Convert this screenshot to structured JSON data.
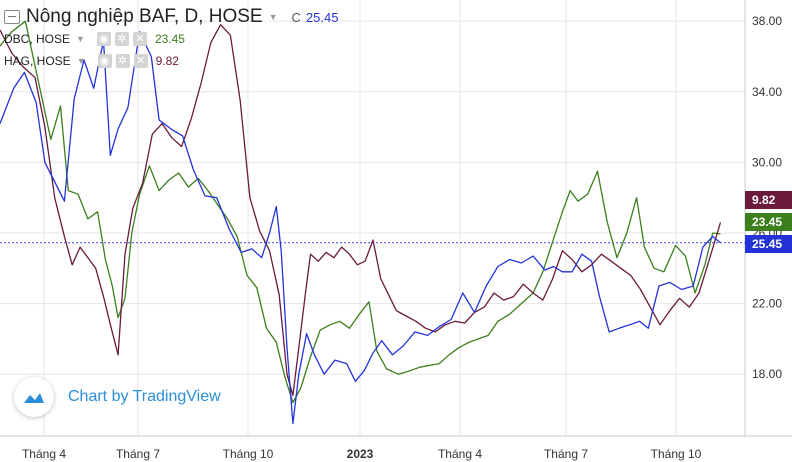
{
  "header": {
    "main_title": "Nông nghiệp BAF, D, HOSE",
    "main_label": "C",
    "main_value": "25.45"
  },
  "legend": [
    {
      "name": "DBC, HOSE",
      "value": "23.45",
      "icons": [
        "eye-icon",
        "gear-icon",
        "close-icon"
      ]
    },
    {
      "name": "HAG, HOSE",
      "value": "9.82",
      "icons": [
        "eye-icon",
        "gear-icon",
        "close-icon"
      ]
    }
  ],
  "watermark": {
    "text": "Chart by TradingView"
  },
  "colors": {
    "BAF": "#2433d8",
    "DBC": "#3c7f1c",
    "HAG": "#6b1a3c",
    "grid": "#e6e6e6"
  },
  "chart_data": {
    "type": "line",
    "x_ticks": [
      "Tháng 4",
      "Tháng 7",
      "Tháng 10",
      "2023",
      "Tháng 4",
      "Tháng 7",
      "Tháng 10"
    ],
    "y_ticks": [
      "38.00",
      "34.00",
      "30.00",
      "26.00",
      "22.00",
      "18.00"
    ],
    "ylim": [
      14.5,
      39.2
    ],
    "xlim": [
      0,
      760
    ],
    "grid": true,
    "price_line": 25.45,
    "last_labels": [
      {
        "series": "HAG",
        "text": "9.82"
      },
      {
        "series": "DBC",
        "text": "23.45"
      },
      {
        "series": "BAF",
        "text": "25.45"
      }
    ],
    "series": [
      {
        "name": "BAF",
        "points": [
          [
            0,
            32.2
          ],
          [
            14,
            34.2
          ],
          [
            25,
            35.1
          ],
          [
            37,
            33.4
          ],
          [
            46,
            30.0
          ],
          [
            56,
            28.9
          ],
          [
            66,
            27.8
          ],
          [
            76,
            33.6
          ],
          [
            86,
            35.8
          ],
          [
            96,
            34.2
          ],
          [
            106,
            36.9
          ],
          [
            113,
            30.4
          ],
          [
            121,
            31.9
          ],
          [
            131,
            33.1
          ],
          [
            143,
            37.4
          ],
          [
            155,
            36.0
          ],
          [
            163,
            32.4
          ],
          [
            175,
            31.9
          ],
          [
            187,
            31.5
          ],
          [
            198,
            29.6
          ],
          [
            210,
            28.1
          ],
          [
            222,
            28.0
          ],
          [
            235,
            26.2
          ],
          [
            247,
            24.9
          ],
          [
            258,
            25.1
          ],
          [
            268,
            24.6
          ],
          [
            276,
            26.0
          ],
          [
            283,
            27.5
          ],
          [
            288,
            25.0
          ],
          [
            294,
            19.5
          ],
          [
            300,
            15.2
          ],
          [
            306,
            18.0
          ],
          [
            314,
            20.3
          ],
          [
            322,
            19.1
          ],
          [
            332,
            18.0
          ],
          [
            343,
            18.8
          ],
          [
            355,
            18.6
          ],
          [
            364,
            17.6
          ],
          [
            373,
            18.2
          ],
          [
            382,
            19.2
          ],
          [
            391,
            19.9
          ],
          [
            402,
            19.1
          ],
          [
            413,
            19.6
          ],
          [
            425,
            20.4
          ],
          [
            438,
            20.2
          ],
          [
            450,
            20.7
          ],
          [
            462,
            21.1
          ],
          [
            474,
            22.6
          ],
          [
            486,
            21.5
          ],
          [
            498,
            23.0
          ],
          [
            510,
            24.1
          ],
          [
            522,
            24.5
          ],
          [
            534,
            24.3
          ],
          [
            546,
            24.7
          ],
          [
            558,
            23.9
          ],
          [
            567,
            24.1
          ],
          [
            576,
            23.8
          ],
          [
            586,
            23.8
          ],
          [
            596,
            24.8
          ],
          [
            606,
            24.4
          ],
          [
            614,
            22.4
          ],
          [
            624,
            20.4
          ],
          [
            634,
            20.6
          ],
          [
            645,
            20.8
          ],
          [
            655,
            21.0
          ],
          [
            664,
            20.6
          ],
          [
            675,
            23.0
          ],
          [
            686,
            23.2
          ],
          [
            698,
            22.8
          ],
          [
            710,
            23.0
          ],
          [
            720,
            25.2
          ],
          [
            730,
            25.8
          ],
          [
            738,
            25.45
          ]
        ]
      },
      {
        "name": "DBC",
        "points": [
          [
            0,
            36.6
          ],
          [
            12,
            37.4
          ],
          [
            26,
            38.0
          ],
          [
            40,
            34.4
          ],
          [
            52,
            31.3
          ],
          [
            62,
            33.2
          ],
          [
            70,
            28.4
          ],
          [
            80,
            28.2
          ],
          [
            90,
            26.8
          ],
          [
            100,
            27.2
          ],
          [
            108,
            24.5
          ],
          [
            115,
            23.0
          ],
          [
            121,
            21.2
          ],
          [
            128,
            22.3
          ],
          [
            135,
            26.0
          ],
          [
            143,
            28.2
          ],
          [
            153,
            29.8
          ],
          [
            163,
            28.4
          ],
          [
            173,
            29.0
          ],
          [
            183,
            29.4
          ],
          [
            193,
            28.6
          ],
          [
            203,
            29.1
          ],
          [
            213,
            28.4
          ],
          [
            223,
            27.6
          ],
          [
            233,
            26.8
          ],
          [
            243,
            25.8
          ],
          [
            253,
            23.6
          ],
          [
            263,
            22.9
          ],
          [
            273,
            20.6
          ],
          [
            283,
            19.8
          ],
          [
            292,
            17.8
          ],
          [
            300,
            16.4
          ],
          [
            308,
            17.2
          ],
          [
            318,
            19.0
          ],
          [
            328,
            20.5
          ],
          [
            338,
            20.8
          ],
          [
            348,
            21.0
          ],
          [
            358,
            20.6
          ],
          [
            368,
            21.4
          ],
          [
            378,
            22.1
          ],
          [
            386,
            19.3
          ],
          [
            396,
            18.3
          ],
          [
            408,
            18.0
          ],
          [
            420,
            18.2
          ],
          [
            430,
            18.4
          ],
          [
            440,
            18.5
          ],
          [
            450,
            18.6
          ],
          [
            460,
            19.1
          ],
          [
            470,
            19.5
          ],
          [
            480,
            19.8
          ],
          [
            490,
            20.0
          ],
          [
            500,
            20.2
          ],
          [
            510,
            21.0
          ],
          [
            522,
            21.4
          ],
          [
            534,
            22.0
          ],
          [
            546,
            22.6
          ],
          [
            556,
            23.8
          ],
          [
            566,
            25.5
          ],
          [
            576,
            27.2
          ],
          [
            584,
            28.4
          ],
          [
            592,
            27.8
          ],
          [
            602,
            28.2
          ],
          [
            612,
            29.5
          ],
          [
            622,
            26.6
          ],
          [
            632,
            24.6
          ],
          [
            642,
            26.0
          ],
          [
            652,
            28.0
          ],
          [
            660,
            25.2
          ],
          [
            670,
            24.0
          ],
          [
            680,
            23.8
          ],
          [
            692,
            25.3
          ],
          [
            702,
            24.7
          ],
          [
            712,
            22.6
          ],
          [
            722,
            24.2
          ],
          [
            730,
            26.0
          ],
          [
            738,
            25.95
          ]
        ]
      },
      {
        "name": "HAG",
        "points": [
          [
            0,
            37.5
          ],
          [
            12,
            36.2
          ],
          [
            24,
            35.4
          ],
          [
            36,
            34.8
          ],
          [
            46,
            32.0
          ],
          [
            56,
            28.0
          ],
          [
            66,
            25.8
          ],
          [
            74,
            24.2
          ],
          [
            82,
            25.2
          ],
          [
            90,
            24.6
          ],
          [
            98,
            24.0
          ],
          [
            106,
            22.4
          ],
          [
            114,
            20.6
          ],
          [
            121,
            19.1
          ],
          [
            128,
            24.8
          ],
          [
            136,
            27.4
          ],
          [
            146,
            28.8
          ],
          [
            156,
            31.6
          ],
          [
            166,
            32.2
          ],
          [
            176,
            31.4
          ],
          [
            186,
            30.9
          ],
          [
            196,
            32.5
          ],
          [
            206,
            34.5
          ],
          [
            216,
            36.8
          ],
          [
            226,
            37.8
          ],
          [
            236,
            37.2
          ],
          [
            246,
            33.5
          ],
          [
            256,
            28.0
          ],
          [
            266,
            26.1
          ],
          [
            276,
            25.0
          ],
          [
            286,
            22.5
          ],
          [
            294,
            18.0
          ],
          [
            300,
            16.8
          ],
          [
            306,
            19.5
          ],
          [
            312,
            22.2
          ],
          [
            318,
            24.8
          ],
          [
            326,
            24.4
          ],
          [
            334,
            24.9
          ],
          [
            342,
            24.6
          ],
          [
            350,
            25.2
          ],
          [
            358,
            24.8
          ],
          [
            366,
            24.2
          ],
          [
            374,
            24.4
          ],
          [
            382,
            25.6
          ],
          [
            390,
            23.4
          ],
          [
            398,
            22.5
          ],
          [
            406,
            21.6
          ],
          [
            416,
            21.3
          ],
          [
            426,
            21.0
          ],
          [
            436,
            20.6
          ],
          [
            446,
            20.4
          ],
          [
            456,
            20.8
          ],
          [
            466,
            21.0
          ],
          [
            476,
            20.9
          ],
          [
            486,
            21.5
          ],
          [
            496,
            21.8
          ],
          [
            506,
            22.6
          ],
          [
            516,
            22.2
          ],
          [
            526,
            22.4
          ],
          [
            536,
            23.1
          ],
          [
            546,
            22.6
          ],
          [
            556,
            22.2
          ],
          [
            566,
            23.4
          ],
          [
            576,
            25.0
          ],
          [
            586,
            24.5
          ],
          [
            596,
            23.8
          ],
          [
            606,
            24.2
          ],
          [
            616,
            24.8
          ],
          [
            626,
            24.4
          ],
          [
            636,
            24.0
          ],
          [
            646,
            23.6
          ],
          [
            656,
            22.8
          ],
          [
            666,
            21.8
          ],
          [
            676,
            20.8
          ],
          [
            686,
            21.6
          ],
          [
            696,
            22.3
          ],
          [
            706,
            21.8
          ],
          [
            716,
            22.6
          ],
          [
            726,
            24.4
          ],
          [
            738,
            26.6
          ]
        ]
      }
    ]
  }
}
